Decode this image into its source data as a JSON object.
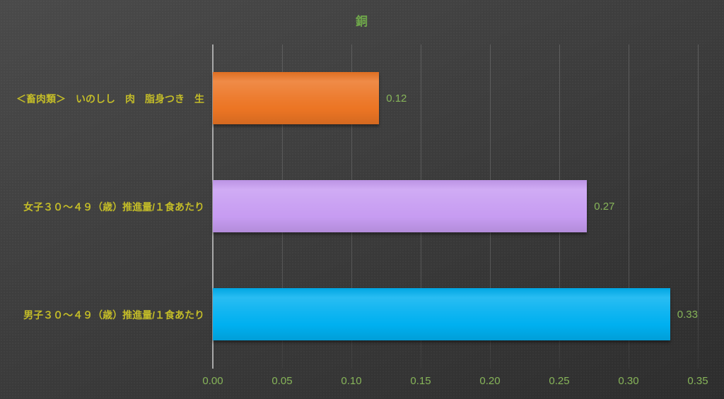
{
  "chart_data": {
    "type": "bar",
    "orientation": "horizontal",
    "title": "銅",
    "categories": [
      "＜畜肉類＞　いのしし　肉　脂身つき　生",
      "女子３０～４９（歳）推進量/１食あたり",
      "男子３０～４９（歳）推進量/１食あたり"
    ],
    "values": [
      0.12,
      0.27,
      0.33
    ],
    "value_labels": [
      "0.12",
      "0.27",
      "0.33"
    ],
    "bar_colors": [
      "#ec7524",
      "#c79cf2",
      "#00b0f0"
    ],
    "xlabel": "",
    "ylabel": "",
    "xlim": [
      0,
      0.35
    ],
    "xticks": [
      "0.00",
      "0.05",
      "0.10",
      "0.15",
      "0.20",
      "0.25",
      "0.30",
      "0.35"
    ],
    "grid": true,
    "legend": "none",
    "colors": {
      "background_top": "#4a4a4a",
      "background_bottom": "#2d2d2d",
      "title_text": "#6fa84a",
      "tick_text": "#87b559",
      "value_text": "#87b559",
      "category_text": "#c3bc28",
      "axis_line": "#a9a9a9",
      "gridline": "#5e5e5e"
    }
  }
}
